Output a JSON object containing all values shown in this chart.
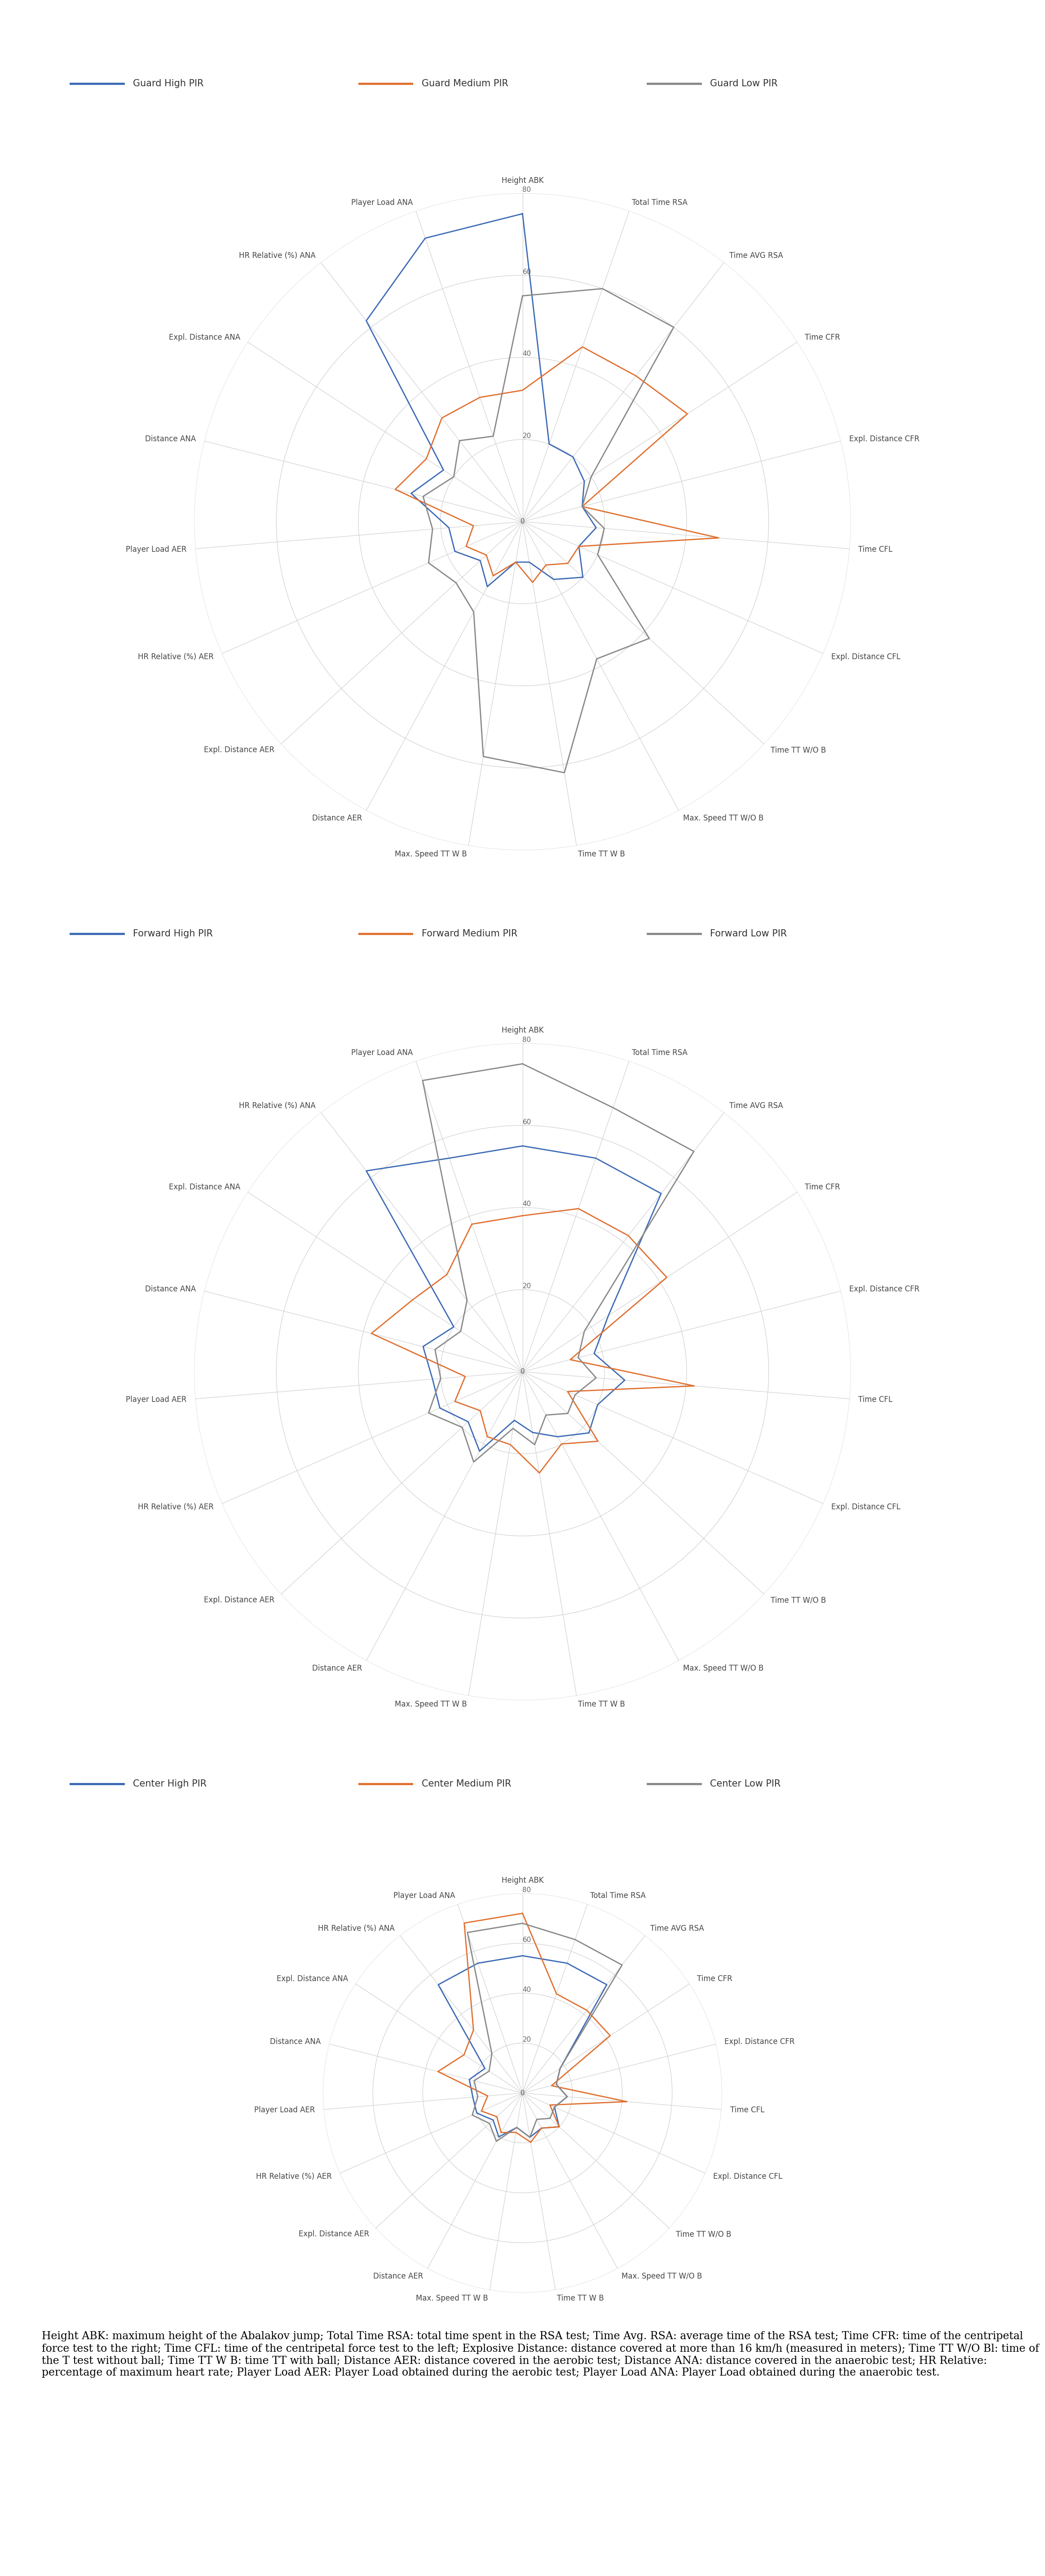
{
  "categories": [
    "Height ABK",
    "Total Time RSA",
    "Time AVG RSA",
    "Time CFR",
    "Expl. Distance CFR",
    "Time CFL",
    "Expl. Distance CFL",
    "Time TT W/O B",
    "Max. Speed TT W/O B",
    "Time TT W B",
    "Max. Speed TT W B",
    "Distance AER",
    "Expl. Distance AER",
    "HR Relative (%) AER",
    "Player Load AER",
    "Distance ANA",
    "Expl. Distance ANA",
    "HR Relative (%) ANA",
    "Player Load ANA"
  ],
  "r_ticks": [
    20,
    40,
    60,
    80
  ],
  "r_max": 80,
  "guard": {
    "labels": [
      "Guard High PIR",
      "Guard Medium PIR",
      "Guard Low PIR"
    ],
    "colors": [
      "#3c6ab5",
      "#e07030",
      "#888888"
    ],
    "high": [
      75,
      20,
      20,
      18,
      15,
      18,
      15,
      18,
      16,
      10,
      10,
      18,
      14,
      18,
      18,
      28,
      23,
      62,
      73
    ],
    "medium": [
      32,
      45,
      45,
      48,
      15,
      48,
      15,
      15,
      12,
      15,
      10,
      15,
      12,
      15,
      12,
      35,
      30,
      33,
      33
    ],
    "low": [
      52,
      60,
      60,
      20,
      15,
      20,
      20,
      42,
      38,
      62,
      58,
      25,
      22,
      25,
      22,
      25,
      20,
      25,
      22
    ]
  },
  "forward": {
    "labels": [
      "Forward High PIR",
      "Forward Medium PIR",
      "Forward Low PIR"
    ],
    "colors": [
      "#3c6ab5",
      "#e07030",
      "#888888"
    ],
    "high": [
      55,
      55,
      55,
      25,
      18,
      25,
      20,
      20,
      16,
      15,
      12,
      20,
      16,
      20,
      20,
      25,
      20,
      62,
      55
    ],
    "medium": [
      38,
      42,
      42,
      42,
      12,
      42,
      12,
      25,
      20,
      25,
      18,
      18,
      14,
      18,
      14,
      38,
      32,
      30,
      38
    ],
    "low": [
      75,
      68,
      68,
      18,
      15,
      18,
      15,
      15,
      12,
      18,
      15,
      25,
      20,
      25,
      20,
      22,
      18,
      22,
      75
    ]
  },
  "center": {
    "labels": [
      "Center High PIR",
      "Center Medium PIR",
      "Center Low PIR"
    ],
    "colors": [
      "#3c6ab5",
      "#e07030",
      "#888888"
    ],
    "high": [
      55,
      55,
      55,
      18,
      15,
      18,
      15,
      20,
      16,
      18,
      15,
      20,
      16,
      20,
      20,
      22,
      18,
      55,
      55
    ],
    "medium": [
      72,
      42,
      42,
      42,
      12,
      42,
      12,
      20,
      16,
      20,
      16,
      18,
      14,
      18,
      14,
      35,
      28,
      32,
      72
    ],
    "low": [
      68,
      65,
      65,
      18,
      15,
      18,
      15,
      15,
      12,
      18,
      15,
      22,
      18,
      22,
      18,
      20,
      16,
      20,
      68
    ]
  },
  "footnote": "Height ABK: maximum height of the Abalakov jump; Total Time RSA: total time spent in the RSA test; Time Avg. RSA: average time of the RSA test; Time CFR: time of the centripetal force test to the right; Time CFL: time of the centripetal force test to the left; Explosive Distance: distance covered at more than 16 km/h (measured in meters); Time TT W/O Bl: time of the T test without ball; Time TT W B: time TT with ball; Distance AER: distance covered in the aerobic test; Distance ANA: distance covered in the anaerobic test; HR Relative: percentage of maximum heart rate; Player Load AER: Player Load obtained during the aerobic test; Player Load ANA: Player Load obtained during the anaerobic test.",
  "line_width": 2.0
}
